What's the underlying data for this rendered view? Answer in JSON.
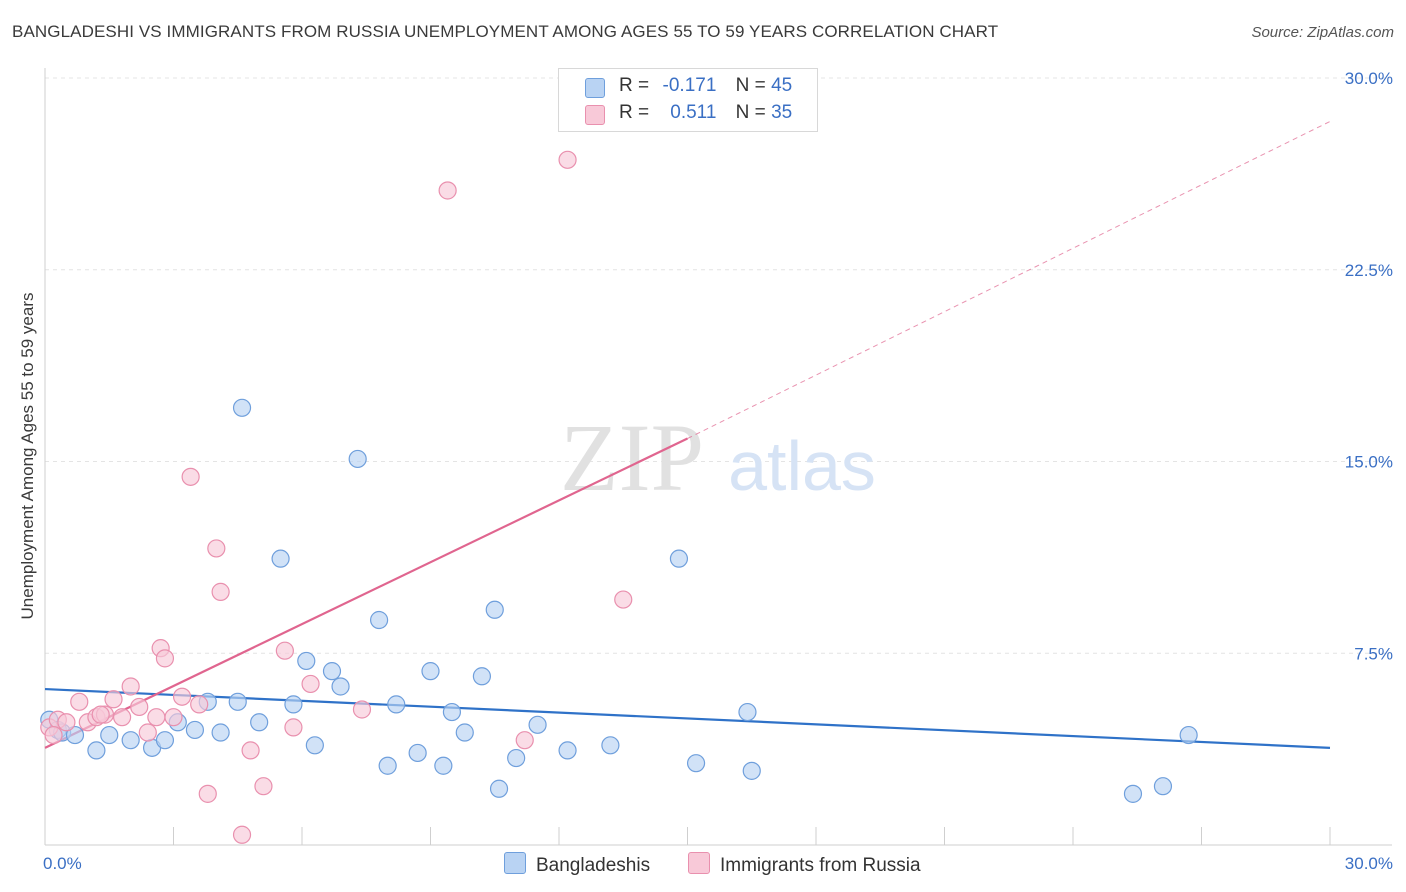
{
  "title": "BANGLADESHI VS IMMIGRANTS FROM RUSSIA UNEMPLOYMENT AMONG AGES 55 TO 59 YEARS CORRELATION CHART",
  "source": "Source: ZipAtlas.com",
  "watermark": {
    "zip": "ZIP",
    "atlas": "atlas"
  },
  "legend": {
    "rows": [
      {
        "r_label": "R =",
        "r_value": "-0.171",
        "n_label": "N =",
        "n_value": "45"
      },
      {
        "r_label": "R =",
        "r_value": "0.511",
        "n_label": "N =",
        "n_value": "35"
      }
    ]
  },
  "colors": {
    "blue_fill": "#b9d3f3",
    "blue_stroke": "#6f9fdc",
    "blue_line": "#2f72c8",
    "pink_fill": "#f8c9d8",
    "pink_stroke": "#e990ae",
    "pink_line": "#e0658f",
    "tick_text": "#3a6fc4",
    "grid": "#e4e4e4"
  },
  "chart_data": {
    "type": "scatter",
    "title": "BANGLADESHI VS IMMIGRANTS FROM RUSSIA UNEMPLOYMENT AMONG AGES 55 TO 59 YEARS CORRELATION CHART",
    "xlabel": "",
    "ylabel": "Unemployment Among Ages 55 to 59 years",
    "xlim": [
      0,
      30
    ],
    "ylim": [
      0,
      30
    ],
    "x_tick_labels": [
      "0.0%",
      "30.0%"
    ],
    "y_ticks": [
      7.5,
      15.0,
      22.5,
      30.0
    ],
    "y_tick_labels": [
      "7.5%",
      "15.0%",
      "22.5%",
      "30.0%"
    ],
    "grid": true,
    "legend_position": "top-center",
    "series": [
      {
        "name": "Bangladeshis",
        "r": -0.171,
        "n": 45,
        "points": [
          [
            0.1,
            4.9
          ],
          [
            0.3,
            4.5
          ],
          [
            0.4,
            4.4
          ],
          [
            0.7,
            4.3
          ],
          [
            1.2,
            3.7
          ],
          [
            1.5,
            4.3
          ],
          [
            2.0,
            4.1
          ],
          [
            2.5,
            3.8
          ],
          [
            2.8,
            4.1
          ],
          [
            3.1,
            4.8
          ],
          [
            3.5,
            4.5
          ],
          [
            3.8,
            5.6
          ],
          [
            4.1,
            4.4
          ],
          [
            4.5,
            5.6
          ],
          [
            4.6,
            17.1
          ],
          [
            5.0,
            4.8
          ],
          [
            5.5,
            11.2
          ],
          [
            5.8,
            5.5
          ],
          [
            6.1,
            7.2
          ],
          [
            6.3,
            3.9
          ],
          [
            6.7,
            6.8
          ],
          [
            6.9,
            6.2
          ],
          [
            7.3,
            15.1
          ],
          [
            7.8,
            8.8
          ],
          [
            8.0,
            3.1
          ],
          [
            8.2,
            5.5
          ],
          [
            8.7,
            3.6
          ],
          [
            9.0,
            6.8
          ],
          [
            9.3,
            3.1
          ],
          [
            9.5,
            5.2
          ],
          [
            9.8,
            4.4
          ],
          [
            10.2,
            6.6
          ],
          [
            10.5,
            9.2
          ],
          [
            10.6,
            2.2
          ],
          [
            11.0,
            3.4
          ],
          [
            11.5,
            4.7
          ],
          [
            12.2,
            3.7
          ],
          [
            13.2,
            3.9
          ],
          [
            14.8,
            11.2
          ],
          [
            15.2,
            3.2
          ],
          [
            16.4,
            5.2
          ],
          [
            16.5,
            2.9
          ],
          [
            25.4,
            2.0
          ],
          [
            26.1,
            2.3
          ],
          [
            26.7,
            4.3
          ]
        ],
        "trend": {
          "x": [
            0,
            30
          ],
          "y": [
            6.1,
            3.8
          ]
        }
      },
      {
        "name": "Immigrants from Russia",
        "r": 0.511,
        "n": 35,
        "points": [
          [
            0.1,
            4.6
          ],
          [
            0.3,
            4.9
          ],
          [
            0.5,
            4.8
          ],
          [
            0.8,
            5.6
          ],
          [
            1.0,
            4.8
          ],
          [
            1.2,
            5.0
          ],
          [
            1.4,
            5.1
          ],
          [
            1.6,
            5.7
          ],
          [
            1.8,
            5.0
          ],
          [
            2.0,
            6.2
          ],
          [
            2.2,
            5.4
          ],
          [
            2.4,
            4.4
          ],
          [
            2.6,
            5.0
          ],
          [
            2.7,
            7.7
          ],
          [
            2.8,
            7.3
          ],
          [
            3.0,
            5.0
          ],
          [
            3.2,
            5.8
          ],
          [
            3.4,
            14.4
          ],
          [
            3.6,
            5.5
          ],
          [
            3.8,
            2.0
          ],
          [
            4.0,
            11.6
          ],
          [
            4.1,
            9.9
          ],
          [
            4.6,
            0.4
          ],
          [
            4.8,
            3.7
          ],
          [
            5.1,
            2.3
          ],
          [
            5.6,
            7.6
          ],
          [
            5.8,
            4.6
          ],
          [
            6.2,
            6.3
          ],
          [
            7.4,
            5.3
          ],
          [
            9.4,
            25.6
          ],
          [
            11.2,
            4.1
          ],
          [
            12.2,
            26.8
          ],
          [
            13.5,
            9.6
          ],
          [
            0.2,
            4.3
          ],
          [
            1.3,
            5.1
          ]
        ],
        "trend": {
          "x": [
            0,
            15
          ],
          "y": [
            3.8,
            15.9
          ]
        },
        "trend_dashed": {
          "x": [
            15,
            30
          ],
          "y": [
            15.9,
            28.3
          ]
        }
      }
    ]
  },
  "bottom_legend": [
    "Bangladeshis",
    "Immigrants from Russia"
  ]
}
